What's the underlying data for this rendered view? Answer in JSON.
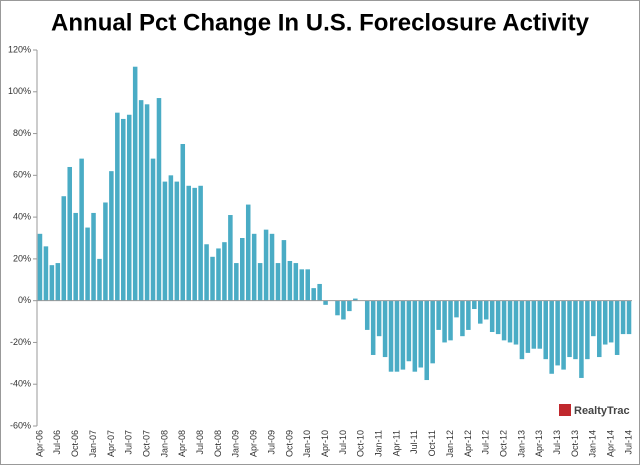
{
  "chart_data": {
    "type": "bar",
    "title": "Annual Pct Change In U.S. Foreclosure Activity",
    "logo": "RealtyTrac",
    "color": "#4aacc5",
    "grid": false,
    "ylim": [
      -60,
      120
    ],
    "yticks": [
      {
        "value": -60,
        "label": "-60%"
      },
      {
        "value": -40,
        "label": "-40%"
      },
      {
        "value": -20,
        "label": "-20%"
      },
      {
        "value": 0,
        "label": "0%"
      },
      {
        "value": 20,
        "label": "20%"
      },
      {
        "value": 40,
        "label": "40%"
      },
      {
        "value": 60,
        "label": "60%"
      },
      {
        "value": 80,
        "label": "80%"
      },
      {
        "value": 100,
        "label": "100%"
      },
      {
        "value": 120,
        "label": "120%"
      }
    ],
    "categories": [
      "Apr-06",
      null,
      null,
      "Jul-06",
      null,
      null,
      "Oct-06",
      null,
      null,
      "Jan-07",
      null,
      null,
      "Apr-07",
      null,
      null,
      "Jul-07",
      null,
      null,
      "Oct-07",
      null,
      null,
      "Jan-08",
      null,
      null,
      "Apr-08",
      null,
      null,
      "Jul-08",
      null,
      null,
      "Oct-08",
      null,
      null,
      "Jan-09",
      null,
      null,
      "Apr-09",
      null,
      null,
      "Jul-09",
      null,
      null,
      "Oct-09",
      null,
      null,
      "Jan-10",
      null,
      null,
      "Apr-10",
      null,
      null,
      "Jul-10",
      null,
      null,
      "Oct-10",
      null,
      null,
      "Jan-11",
      null,
      null,
      "Apr-11",
      null,
      null,
      "Jul-11",
      null,
      null,
      "Oct-11",
      null,
      null,
      "Jan-12",
      null,
      null,
      "Apr-12",
      null,
      null,
      "Jul-12",
      null,
      null,
      "Oct-12",
      null,
      null,
      "Jan-13",
      null,
      null,
      "Apr-13",
      null,
      null,
      "Jul-13",
      null,
      null,
      "Oct-13",
      null,
      null,
      "Jan-14",
      null,
      null,
      "Apr-14",
      null,
      null,
      "Jul-14"
    ],
    "values": [
      32,
      26,
      17,
      18,
      50,
      64,
      42,
      68,
      35,
      42,
      20,
      47,
      62,
      90,
      87,
      89,
      112,
      96,
      94,
      68,
      97,
      57,
      60,
      57,
      75,
      55,
      54,
      55,
      27,
      21,
      25,
      28,
      41,
      18,
      30,
      46,
      32,
      18,
      34,
      32,
      18,
      29,
      19,
      18,
      15,
      15,
      6,
      8,
      -2,
      0,
      -7,
      -9,
      -5,
      1,
      0,
      -14,
      -26,
      -17,
      -27,
      -34,
      -34,
      -33,
      -29,
      -34,
      -32,
      -38,
      -30,
      -14,
      -20,
      -19,
      -8,
      -17,
      -14,
      -4,
      -11,
      -9,
      -15,
      -16,
      -19,
      -20,
      -21,
      -28,
      -25,
      -23,
      -23,
      -28,
      -35,
      -31,
      -33,
      -27,
      -28,
      -37,
      -28,
      -17,
      -27,
      -21,
      -20,
      -26,
      -16,
      -16
    ]
  }
}
